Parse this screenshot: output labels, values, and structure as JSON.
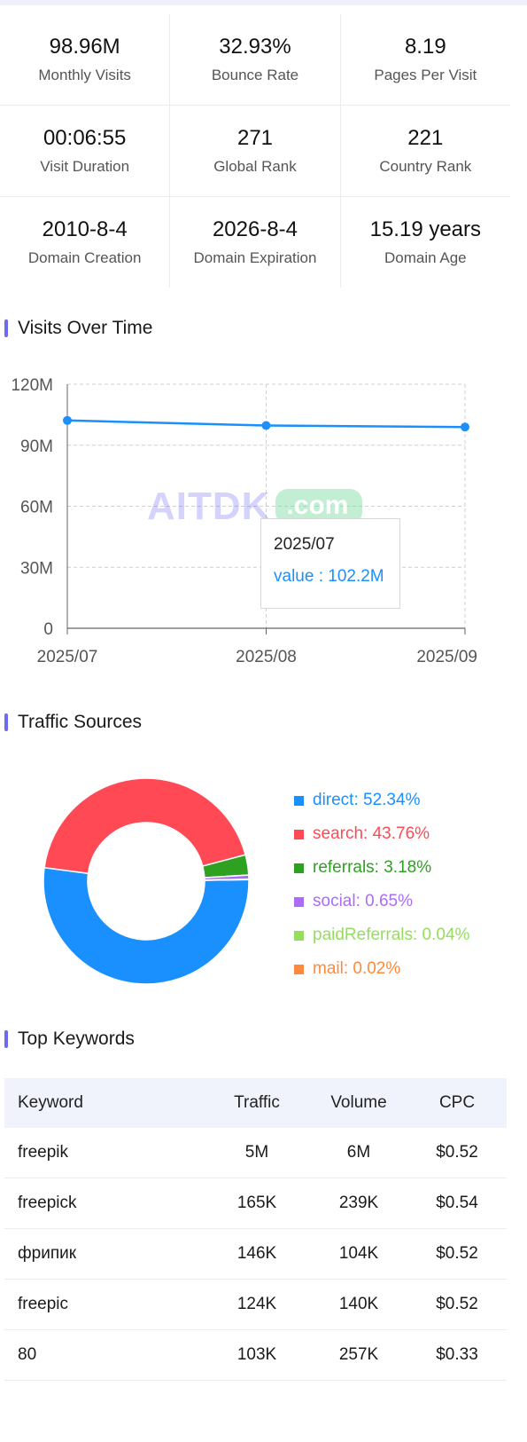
{
  "stats": [
    {
      "value": "98.96M",
      "label": "Monthly Visits"
    },
    {
      "value": "32.93%",
      "label": "Bounce Rate"
    },
    {
      "value": "8.19",
      "label": "Pages Per Visit"
    },
    {
      "value": "00:06:55",
      "label": "Visit Duration"
    },
    {
      "value": "271",
      "label": "Global Rank"
    },
    {
      "value": "221",
      "label": "Country Rank"
    },
    {
      "value": "2010-8-4",
      "label": "Domain Creation"
    },
    {
      "value": "2026-8-4",
      "label": "Domain Expiration"
    },
    {
      "value": "15.19 years",
      "label": "Domain Age"
    }
  ],
  "sections": {
    "visits_title": "Visits Over Time",
    "traffic_title": "Traffic Sources",
    "keywords_title": "Top Keywords"
  },
  "watermark": {
    "main": "AITDK",
    "com": ".com"
  },
  "tooltip": {
    "date": "2025/07",
    "value": "value : 102.2M"
  },
  "chart_data": [
    {
      "type": "line",
      "x": [
        "2025/07",
        "2025/08",
        "2025/09"
      ],
      "series": [
        {
          "values": [
            102.2,
            99.7,
            98.96
          ]
        }
      ],
      "ylim": [
        0,
        120
      ],
      "yticks": [
        "0",
        "30M",
        "60M",
        "90M",
        "120M"
      ],
      "grid": true,
      "color": "#1a90ff"
    },
    {
      "type": "pie",
      "donut": true,
      "legend_position": "right",
      "slices": [
        {
          "name": "direct",
          "value": 52.34,
          "label": "direct: 52.34%",
          "color": "#1a90ff"
        },
        {
          "name": "search",
          "value": 43.76,
          "label": "search: 43.76%",
          "color": "#ff4a55"
        },
        {
          "name": "referrals",
          "value": 3.18,
          "label": "referrals: 3.18%",
          "color": "#2ea121"
        },
        {
          "name": "social",
          "value": 0.65,
          "label": "social: 0.65%",
          "color": "#ab6cf7"
        },
        {
          "name": "paidReferrals",
          "value": 0.04,
          "label": "paidReferrals: 0.04%",
          "color": "#94dd5e"
        },
        {
          "name": "mail",
          "value": 0.02,
          "label": "mail: 0.02%",
          "color": "#ff8a3d"
        }
      ]
    }
  ],
  "keywords": {
    "headers": [
      "Keyword",
      "Traffic",
      "Volume",
      "CPC"
    ],
    "rows": [
      [
        "freepik",
        "5M",
        "6M",
        "$0.52"
      ],
      [
        "freepick",
        "165K",
        "239K",
        "$0.54"
      ],
      [
        "фрипик",
        "146K",
        "104K",
        "$0.52"
      ],
      [
        "freepic",
        "124K",
        "140K",
        "$0.52"
      ],
      [
        "80",
        "103K",
        "257K",
        "$0.33"
      ]
    ]
  }
}
